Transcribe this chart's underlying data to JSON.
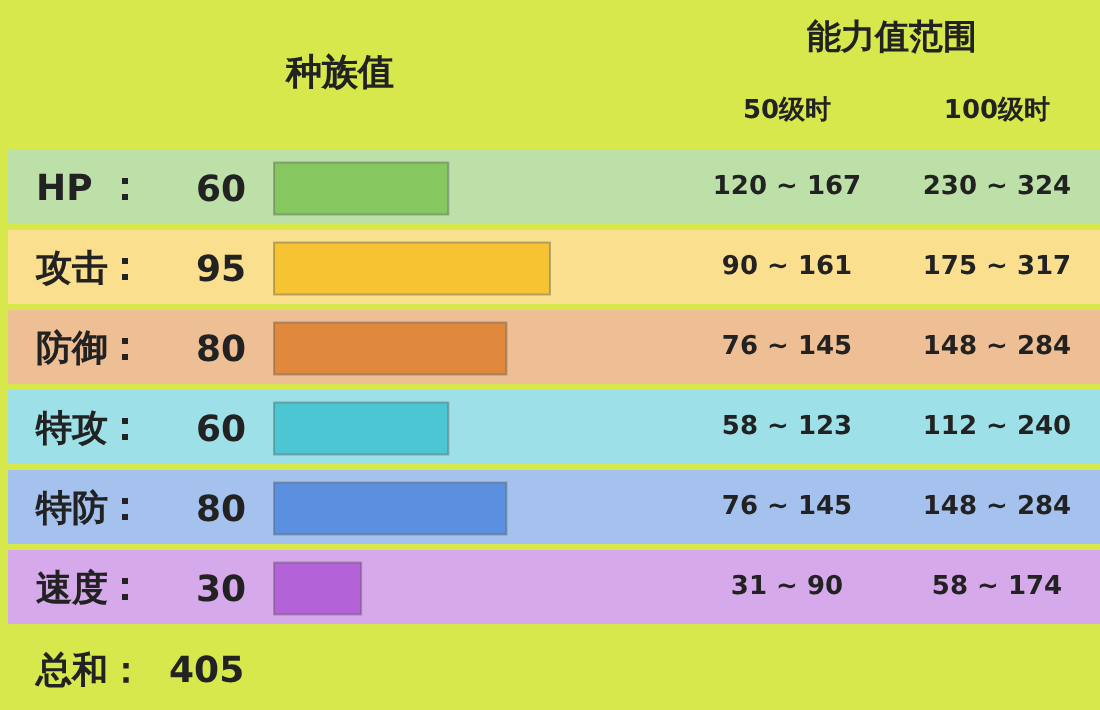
{
  "chart_data": {
    "type": "bar",
    "orientation": "horizontal",
    "title": "种族值",
    "categories": [
      "HP",
      "攻击",
      "防御",
      "特攻",
      "特防",
      "速度"
    ],
    "values": [
      60,
      95,
      80,
      60,
      80,
      30
    ],
    "colors": [
      "#86c760",
      "#f6c432",
      "#e0883c",
      "#4cc6d3",
      "#5b8fe0",
      "#b462d8"
    ],
    "data_labels": true,
    "annotations": [
      "能力值范围",
      "50级时",
      "100级时",
      "120 ~ 167",
      "230 ~ 324",
      "90 ~ 161",
      "175 ~ 317",
      "76 ~ 145",
      "148 ~ 284",
      "58 ~ 123",
      "112 ~ 240",
      "76 ~ 145",
      "148 ~ 284",
      "31 ~ 90",
      "58 ~ 174",
      "总和：  405"
    ]
  }
}
